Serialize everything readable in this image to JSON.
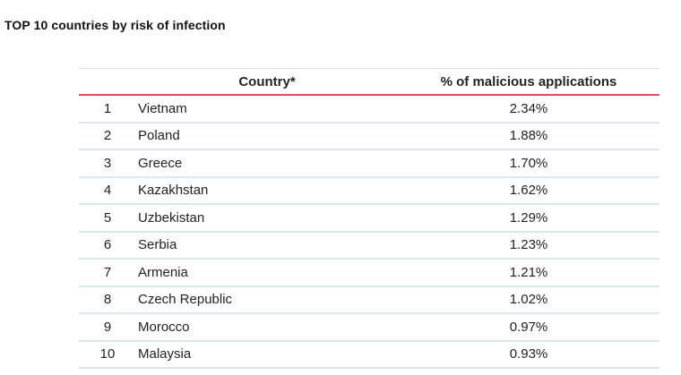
{
  "title": "TOP 10 countries by risk of infection",
  "table": {
    "headers": {
      "rank": "",
      "country": "Country*",
      "percent": "% of malicious applications"
    },
    "rows": [
      {
        "rank": "1",
        "country": "Vietnam",
        "percent": "2.34%"
      },
      {
        "rank": "2",
        "country": "Poland",
        "percent": "1.88%"
      },
      {
        "rank": "3",
        "country": "Greece",
        "percent": "1.70%"
      },
      {
        "rank": "4",
        "country": "Kazakhstan",
        "percent": "1.62%"
      },
      {
        "rank": "5",
        "country": "Uzbekistan",
        "percent": "1.29%"
      },
      {
        "rank": "6",
        "country": "Serbia",
        "percent": "1.23%"
      },
      {
        "rank": "7",
        "country": "Armenia",
        "percent": "1.21%"
      },
      {
        "rank": "8",
        "country": "Czech Republic",
        "percent": "1.02%"
      },
      {
        "rank": "9",
        "country": "Morocco",
        "percent": "0.97%"
      },
      {
        "rank": "10",
        "country": "Malaysia",
        "percent": "0.93%"
      }
    ]
  },
  "colors": {
    "header_rule": "#d9534f",
    "row_rule": "#d7e8ee"
  }
}
